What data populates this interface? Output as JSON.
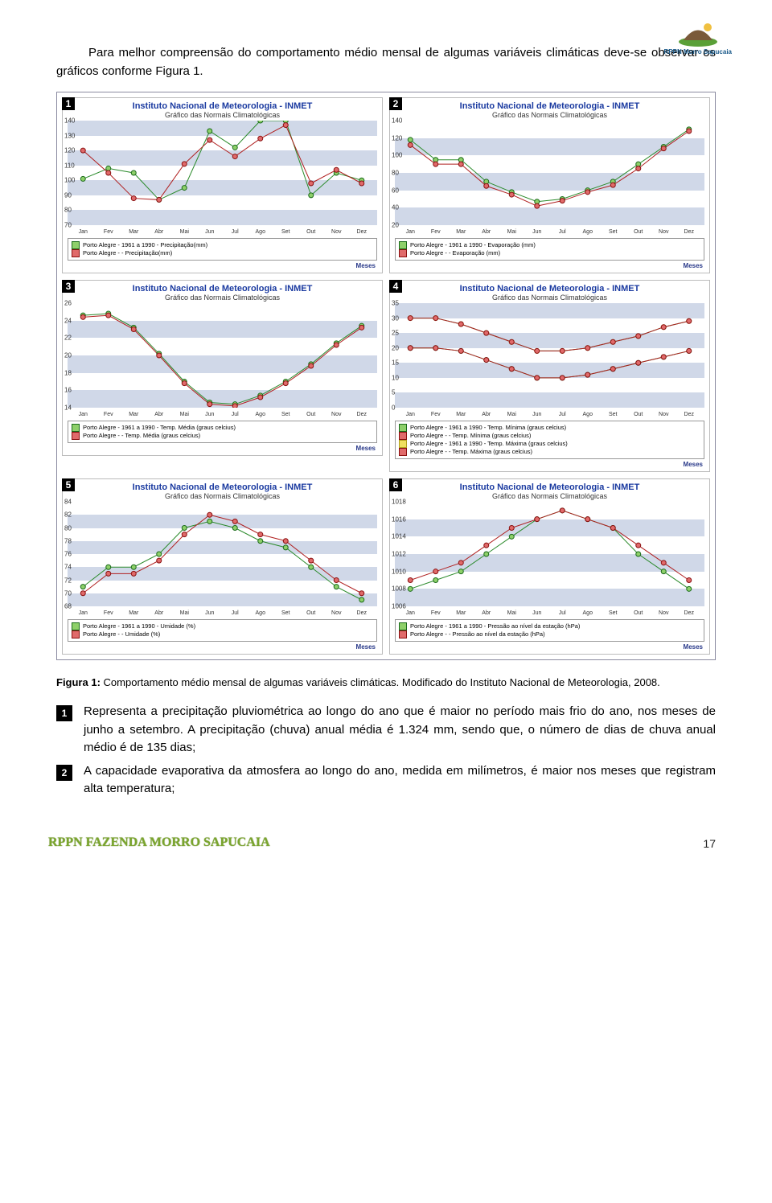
{
  "logo_label": "RPPN Morro Sapucaia",
  "intro": "Para melhor compreensão do comportamento médio mensal de algumas variáveis climáticas deve-se observar os gráficos conforme Figura 1.",
  "months": [
    "Jan",
    "Fev",
    "Mar",
    "Abr",
    "Mai",
    "Jun",
    "Jul",
    "Ago",
    "Set",
    "Out",
    "Nov",
    "Dez"
  ],
  "chart_title": "Instituto Nacional de Meteorologia - INMET",
  "chart_subtitle": "Gráfico das Normais Climatológicas",
  "axis_label": "Meses",
  "colors": {
    "band": "#d0d8e8",
    "grid_bg": "#ffffff",
    "green_line": "#2a8a2a",
    "green_fill": "#8ed06a",
    "green_border": "#1a6a1a",
    "red_line": "#b02020",
    "red_fill": "#e06a6a",
    "red_border": "#8a1010",
    "yellow_fill": "#f0e060",
    "yellow_border": "#b0a020",
    "title": "#1a3aa0"
  },
  "charts": [
    {
      "n": "1",
      "ymin": 70,
      "ymax": 140,
      "ystep": 10,
      "series": [
        {
          "c": "green",
          "label": "Porto Alegre - 1961 a 1990 - Precipitação(mm)",
          "v": [
            101,
            108,
            105,
            87,
            95,
            133,
            122,
            140,
            140,
            90,
            105,
            100
          ]
        },
        {
          "c": "red",
          "label": "Porto Alegre -  - Precipitação(mm)",
          "v": [
            120,
            105,
            88,
            87,
            111,
            127,
            116,
            128,
            137,
            98,
            107,
            98
          ]
        }
      ]
    },
    {
      "n": "2",
      "ymin": 20,
      "ymax": 140,
      "ystep": 20,
      "series": [
        {
          "c": "green",
          "label": "Porto Alegre - 1961 a 1990 - Evaporação (mm)",
          "v": [
            118,
            95,
            95,
            70,
            58,
            47,
            50,
            60,
            70,
            90,
            110,
            130
          ]
        },
        {
          "c": "red",
          "label": "Porto Alegre -  - Evaporação (mm)",
          "v": [
            112,
            90,
            90,
            65,
            55,
            42,
            48,
            58,
            66,
            85,
            108,
            128
          ]
        }
      ]
    },
    {
      "n": "3",
      "ymin": 14,
      "ymax": 26,
      "ystep": 2,
      "series": [
        {
          "c": "green",
          "label": "Porto Alegre - 1961 a 1990 - Temp. Média (graus celcius)",
          "v": [
            24.6,
            24.8,
            23.2,
            20.2,
            17.0,
            14.6,
            14.4,
            15.4,
            17.0,
            19.0,
            21.4,
            23.4
          ]
        },
        {
          "c": "red",
          "label": "Porto Alegre -  - Temp. Média (graus celcius)",
          "v": [
            24.4,
            24.6,
            23.0,
            20.0,
            16.8,
            14.4,
            14.2,
            15.2,
            16.8,
            18.8,
            21.2,
            23.2
          ]
        }
      ]
    },
    {
      "n": "4",
      "ymin": 0,
      "ymax": 35,
      "ystep": 5,
      "series": [
        {
          "c": "green",
          "label": "Porto Alegre - 1961 a 1990 - Temp. Mínima (graus celcius)",
          "v": [
            20,
            20,
            19,
            16,
            13,
            10,
            10,
            11,
            13,
            15,
            17,
            19
          ]
        },
        {
          "c": "red",
          "label": "Porto Alegre -  - Temp. Mínima (graus celcius)",
          "v": [
            20,
            20,
            19,
            16,
            13,
            10,
            10,
            11,
            13,
            15,
            17,
            19
          ]
        },
        {
          "c": "yellow",
          "label": "Porto Alegre - 1961 a 1990 - Temp. Máxima (graus celcius)",
          "v": [
            30,
            30,
            28,
            25,
            22,
            19,
            19,
            20,
            22,
            24,
            27,
            29
          ]
        },
        {
          "c": "red",
          "label": "Porto Alegre -  - Temp. Máxima (graus celcius)",
          "v": [
            30,
            30,
            28,
            25,
            22,
            19,
            19,
            20,
            22,
            24,
            27,
            29
          ]
        }
      ]
    },
    {
      "n": "5",
      "ymin": 68,
      "ymax": 84,
      "ystep": 2,
      "series": [
        {
          "c": "green",
          "label": "Porto Alegre - 1961 a 1990 - Umidade (%)",
          "v": [
            71,
            74,
            74,
            76,
            80,
            81,
            80,
            78,
            77,
            74,
            71,
            69
          ]
        },
        {
          "c": "red",
          "label": "Porto Alegre -  - Umidade (%)",
          "v": [
            70,
            73,
            73,
            75,
            79,
            82,
            81,
            79,
            78,
            75,
            72,
            70
          ]
        }
      ]
    },
    {
      "n": "6",
      "ymin": 1006,
      "ymax": 1018,
      "ystep": 2,
      "series": [
        {
          "c": "green",
          "label": "Porto Alegre - 1961 a 1990 - Pressão ao nível da estação (hPa)",
          "v": [
            1008,
            1009,
            1010,
            1012,
            1014,
            1016,
            1017,
            1016,
            1015,
            1012,
            1010,
            1008
          ]
        },
        {
          "c": "red",
          "label": "Porto Alegre -  - Pressão ao nível da estação (hPa)",
          "v": [
            1009,
            1010,
            1011,
            1013,
            1015,
            1016,
            1017,
            1016,
            1015,
            1013,
            1011,
            1009
          ]
        }
      ]
    }
  ],
  "caption": "Figura 1: Comportamento médio mensal de algumas variáveis climáticas. Modificado do Instituto Nacional de Meteorologia, 2008.",
  "items": [
    {
      "n": "1",
      "t": "Representa a precipitação pluviométrica ao longo do ano que é maior no período mais frio do ano, nos meses de junho a setembro. A precipitação (chuva) anual média é 1.324 mm, sendo que, o número de dias de chuva anual médio é de 135 dias;"
    },
    {
      "n": "2",
      "t": "A capacidade evaporativa da atmosfera ao longo do ano, medida em milímetros, é maior nos meses que registram alta temperatura;"
    }
  ],
  "footer_title": "RPPN FAZENDA MORRO SAPUCAIA",
  "page_num": "17"
}
